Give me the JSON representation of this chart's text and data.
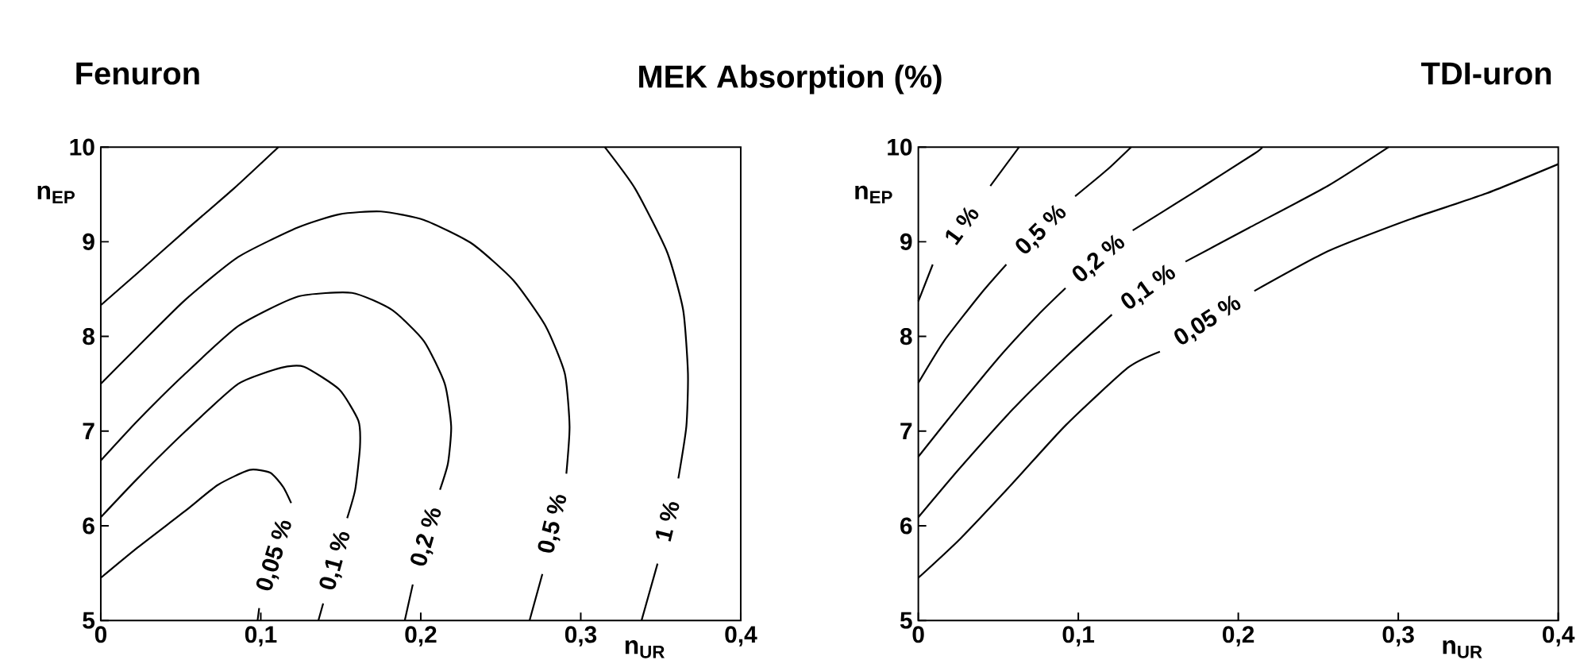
{
  "chart_data": [
    {
      "type": "line",
      "title": "Fenuron",
      "annotations": [
        "MEK Absorption (%)"
      ],
      "xlabel": "n$_{UR}$",
      "ylabel": "n$_{EP}$",
      "xlim": [
        0,
        0.4
      ],
      "ylim": [
        5,
        10
      ],
      "xticks": [
        0,
        {
          "value": 0.1,
          "label": "0,1"
        },
        {
          "value": 0.2,
          "label": "0,2"
        },
        {
          "value": 0.3,
          "label": "0,3"
        },
        {
          "value": 0.4,
          "label": "0,4"
        }
      ],
      "yticks": [
        5,
        6,
        7,
        8,
        9,
        10
      ],
      "series": [
        {
          "name": "0,05 %",
          "color": "#000000",
          "x": [
            0,
            0.023,
            0.053,
            0.073,
            0.093,
            0.106,
            0.114,
            0.119,
            0.109,
            0.099,
            0.098
          ],
          "values": [
            5.45,
            5.77,
            6.16,
            6.43,
            6.59,
            6.56,
            6.41,
            6.24,
            null,
            5.13,
            5.0
          ]
        },
        {
          "name": "0,1 %",
          "color": "#000000",
          "x": [
            0,
            0.023,
            0.053,
            0.086,
            0.113,
            0.127,
            0.149,
            0.161,
            0.162,
            0.159,
            0.154,
            0.147,
            0.139,
            0.136
          ],
          "values": [
            6.09,
            6.5,
            7.0,
            7.5,
            7.67,
            7.68,
            7.44,
            7.11,
            6.83,
            6.38,
            6.08,
            null,
            5.18,
            5.0
          ]
        },
        {
          "name": "0,2 %",
          "color": "#000000",
          "x": [
            0,
            0.023,
            0.053,
            0.086,
            0.123,
            0.157,
            0.182,
            0.202,
            0.215,
            0.219,
            0.217,
            0.212,
            0.204,
            0.195,
            0.19
          ],
          "values": [
            6.69,
            7.11,
            7.61,
            8.11,
            8.42,
            8.46,
            8.28,
            7.95,
            7.5,
            7.05,
            6.66,
            6.38,
            null,
            5.38,
            5.0
          ]
        },
        {
          "name": "0,5 %",
          "color": "#000000",
          "x": [
            0,
            0.023,
            0.053,
            0.086,
            0.123,
            0.149,
            0.175,
            0.202,
            0.232,
            0.258,
            0.278,
            0.29,
            0.293,
            0.291,
            0.283,
            0.276,
            0.268
          ],
          "values": [
            7.5,
            7.89,
            8.39,
            8.84,
            9.15,
            9.29,
            9.32,
            9.23,
            8.98,
            8.59,
            8.11,
            7.61,
            7.05,
            6.55,
            null,
            5.49,
            5.0
          ]
        },
        {
          "color": "#000000",
          "x": [
            0,
            0.023,
            0.053,
            0.083,
            0.111
          ],
          "values": [
            8.33,
            8.67,
            9.12,
            9.56,
            10.0
          ]
        },
        {
          "name": "1 %",
          "color": "#000000",
          "x": [
            0.315,
            0.334,
            0.354,
            0.364,
            0.367,
            0.366,
            0.361,
            0.354,
            0.348,
            0.338
          ],
          "values": [
            10.0,
            9.56,
            8.89,
            8.28,
            7.61,
            7.05,
            6.5,
            null,
            5.6,
            5.0
          ]
        }
      ]
    },
    {
      "type": "line",
      "title": "TDI-uron",
      "xlabel": "n$_{UR}$",
      "ylabel": "n$_{EP}$",
      "xlim": [
        0,
        0.4
      ],
      "ylim": [
        5,
        10
      ],
      "xticks": [
        0,
        {
          "value": 0.1,
          "label": "0,1"
        },
        {
          "value": 0.2,
          "label": "0,2"
        },
        {
          "value": 0.3,
          "label": "0,3"
        },
        {
          "value": 0.4,
          "label": "0,4"
        }
      ],
      "yticks": [
        5,
        6,
        7,
        8,
        9,
        10
      ],
      "series": [
        {
          "name": "1 %",
          "color": "#000000",
          "x": [
            0,
            0.009,
            0.027,
            0.045,
            0.063
          ],
          "values": [
            8.37,
            8.76,
            null,
            9.59,
            10.0
          ]
        },
        {
          "name": "0,5 %",
          "color": "#000000",
          "x": [
            0,
            0.016,
            0.039,
            0.055,
            0.077,
            0.098,
            0.118,
            0.133
          ],
          "values": [
            7.51,
            7.95,
            8.45,
            8.76,
            null,
            9.48,
            9.76,
            10.0
          ]
        },
        {
          "name": "0,2 %",
          "color": "#000000",
          "x": [
            0,
            0.026,
            0.052,
            0.075,
            0.092,
            0.113,
            0.134,
            0.171,
            0.21,
            0.215
          ],
          "values": [
            6.73,
            7.28,
            7.81,
            8.23,
            8.51,
            null,
            9.12,
            9.51,
            9.93,
            10.0
          ]
        },
        {
          "name": "0,1 %",
          "color": "#000000",
          "x": [
            0,
            0.026,
            0.059,
            0.092,
            0.121,
            0.144,
            0.167,
            0.207,
            0.256,
            0.294
          ],
          "values": [
            6.09,
            6.61,
            7.23,
            7.78,
            8.23,
            null,
            8.79,
            9.15,
            9.59,
            10.0
          ]
        },
        {
          "name": "0,05 %",
          "color": "#000000",
          "x": [
            0,
            0.026,
            0.059,
            0.092,
            0.131,
            0.151,
            0.181,
            0.21,
            0.256,
            0.306,
            0.355,
            0.4
          ],
          "values": [
            5.45,
            5.86,
            6.45,
            7.06,
            7.67,
            7.84,
            null,
            8.48,
            8.9,
            9.23,
            9.51,
            9.82
          ]
        }
      ]
    }
  ]
}
